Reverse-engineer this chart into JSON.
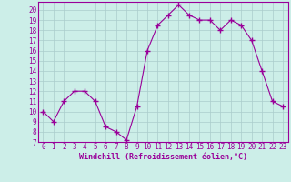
{
  "x": [
    0,
    1,
    2,
    3,
    4,
    5,
    6,
    7,
    8,
    9,
    10,
    11,
    12,
    13,
    14,
    15,
    16,
    17,
    18,
    19,
    20,
    21,
    22,
    23
  ],
  "y": [
    10,
    9,
    11,
    12,
    12,
    11,
    8.5,
    8,
    7.2,
    10.5,
    16,
    18.5,
    19.5,
    20.5,
    19.5,
    19,
    19,
    18,
    19,
    18.5,
    17,
    14,
    11,
    10.5
  ],
  "line_color": "#990099",
  "marker_color": "#990099",
  "bg_color": "#cceee8",
  "grid_color": "#aacccc",
  "xlabel": "Windchill (Refroidissement éolien,°C)",
  "ylim": [
    7,
    20.8
  ],
  "xlim": [
    -0.5,
    23.5
  ],
  "yticks": [
    7,
    8,
    9,
    10,
    11,
    12,
    13,
    14,
    15,
    16,
    17,
    18,
    19,
    20
  ],
  "xticks": [
    0,
    1,
    2,
    3,
    4,
    5,
    6,
    7,
    8,
    9,
    10,
    11,
    12,
    13,
    14,
    15,
    16,
    17,
    18,
    19,
    20,
    21,
    22,
    23
  ],
  "tick_fontsize": 5.5,
  "xlabel_fontsize": 6.0
}
